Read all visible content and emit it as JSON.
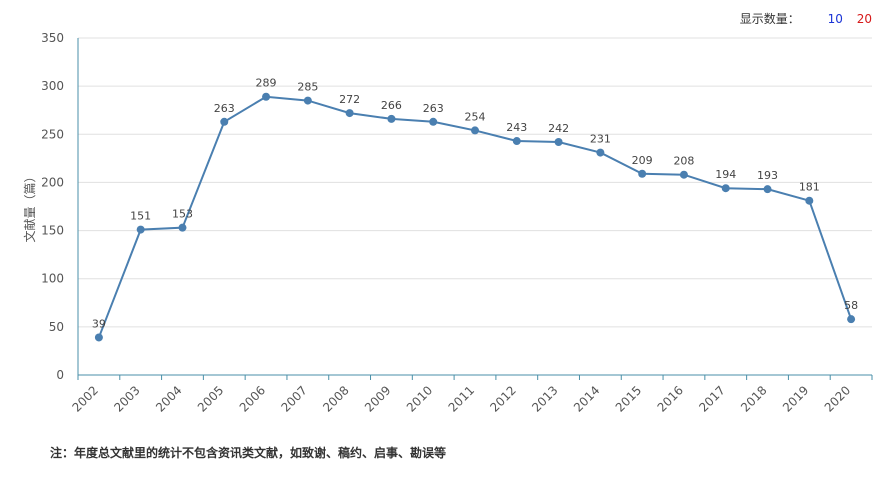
{
  "controls": {
    "label": "显示数量：",
    "options": [
      "10",
      "20"
    ]
  },
  "footnote": "注：年度总文献里的统计不包含资讯类文献，如致谢、稿约、启事、勘误等",
  "colors": {
    "line": "#4a7fb0",
    "grid": "#e0e0e0",
    "axis": "#4a8fa8",
    "text": "#555555"
  },
  "chart_data": {
    "type": "line",
    "title": "",
    "xlabel": "",
    "ylabel": "文献量（篇）",
    "categories": [
      "2002",
      "2003",
      "2004",
      "2005",
      "2006",
      "2007",
      "2008",
      "2009",
      "2010",
      "2011",
      "2012",
      "2013",
      "2014",
      "2015",
      "2016",
      "2017",
      "2018",
      "2019",
      "2020"
    ],
    "values": [
      39,
      151,
      153,
      263,
      289,
      285,
      272,
      266,
      263,
      254,
      243,
      242,
      231,
      209,
      208,
      194,
      193,
      181,
      58
    ],
    "ylim": [
      0,
      350
    ],
    "yticks": [
      0,
      50,
      100,
      150,
      200,
      250,
      300,
      350
    ],
    "grid": true,
    "data_labels": true
  }
}
